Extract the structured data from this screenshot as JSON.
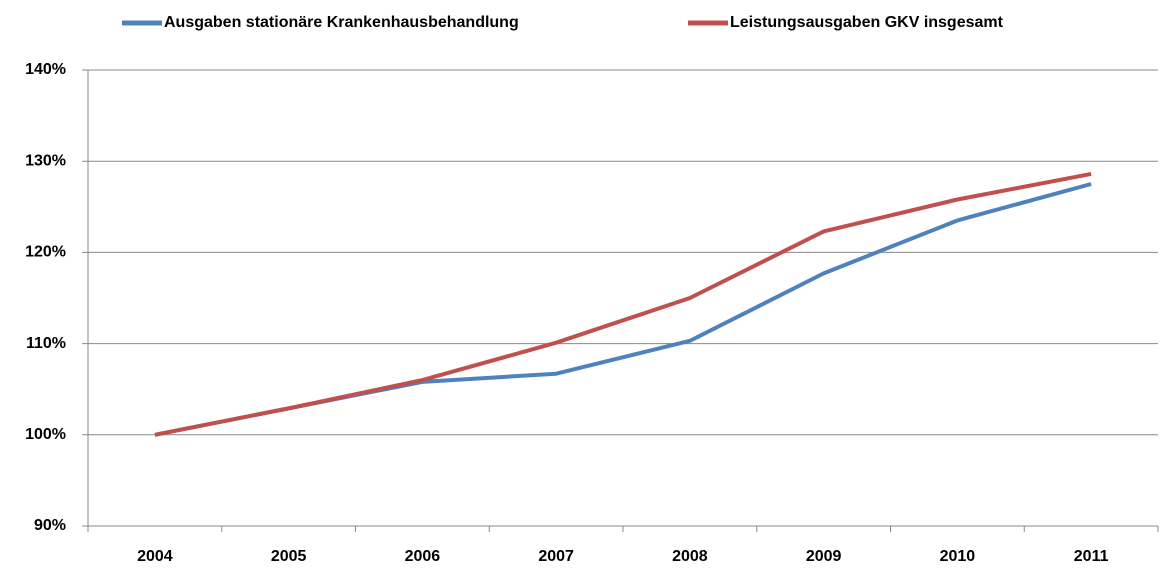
{
  "chart_data": {
    "type": "line",
    "categories": [
      "2004",
      "2005",
      "2006",
      "2007",
      "2008",
      "2009",
      "2010",
      "2011"
    ],
    "series": [
      {
        "name": "Ausgaben stationäre Krankenhausbehandlung",
        "color": "#4f81bd",
        "values": [
          100,
          102.9,
          105.8,
          106.7,
          110.3,
          117.7,
          123.5,
          127.5
        ]
      },
      {
        "name": "Leistungsausgaben GKV insgesamt",
        "color": "#c0504d",
        "values": [
          100,
          102.9,
          106.0,
          110.1,
          115.0,
          122.3,
          125.8,
          128.6
        ]
      }
    ],
    "ylim": [
      90,
      140
    ],
    "yticks": [
      {
        "value": 90,
        "label": "90%"
      },
      {
        "value": 100,
        "label": "100%"
      },
      {
        "value": 110,
        "label": "110%"
      },
      {
        "value": 120,
        "label": "120%"
      },
      {
        "value": 130,
        "label": "130%"
      },
      {
        "value": 140,
        "label": "140%"
      }
    ],
    "grid": true,
    "legend": "top"
  }
}
